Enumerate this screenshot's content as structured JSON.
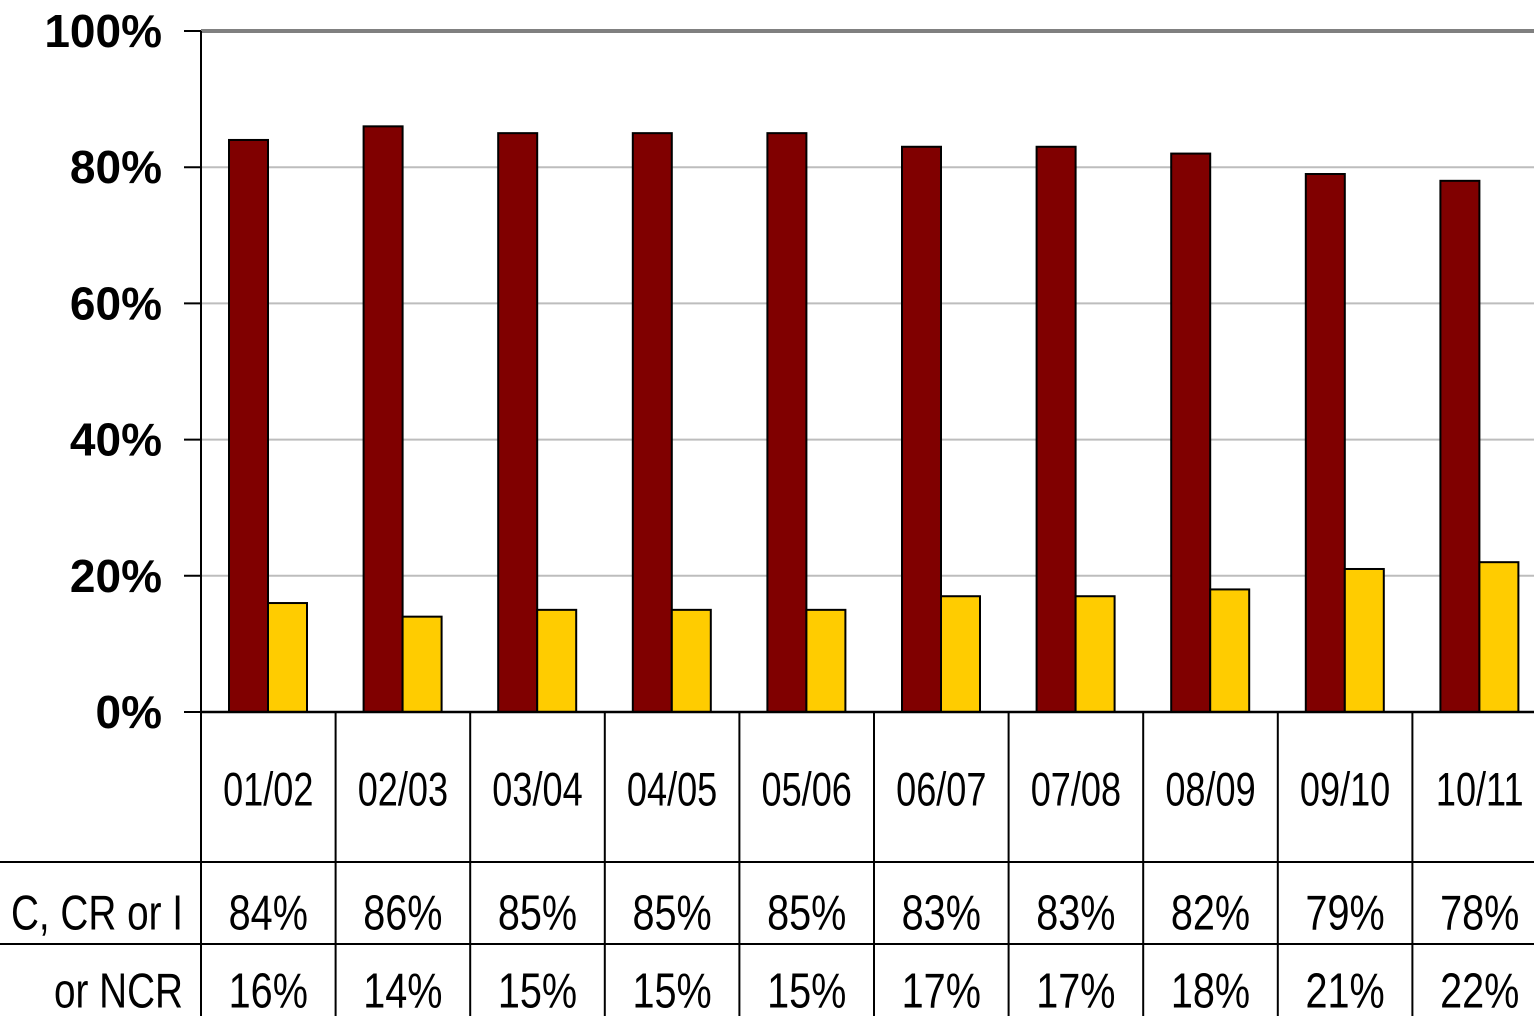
{
  "chart_data": {
    "type": "bar",
    "categories": [
      "01/02",
      "02/03",
      "03/04",
      "04/05",
      "05/06",
      "06/07",
      "07/08",
      "08/09",
      "09/10",
      "10/11"
    ],
    "series": [
      {
        "name": "C, CR or I",
        "color": "#800000",
        "values": [
          84,
          86,
          85,
          85,
          85,
          83,
          83,
          82,
          79,
          78
        ],
        "labels": [
          "84%",
          "86%",
          "85%",
          "85%",
          "85%",
          "83%",
          "83%",
          "82%",
          "79%",
          "78%"
        ]
      },
      {
        "name": "or NCR",
        "color": "#FFCC00",
        "values": [
          16,
          14,
          15,
          15,
          15,
          17,
          17,
          18,
          21,
          22
        ],
        "labels": [
          "16%",
          "14%",
          "15%",
          "15%",
          "15%",
          "17%",
          "17%",
          "18%",
          "21%",
          "22%"
        ]
      }
    ],
    "yticks": [
      "0%",
      "20%",
      "40%",
      "60%",
      "80%",
      "100%"
    ],
    "ylim": [
      0,
      100
    ],
    "grid": true,
    "legend": "data-table rows below the plot"
  }
}
